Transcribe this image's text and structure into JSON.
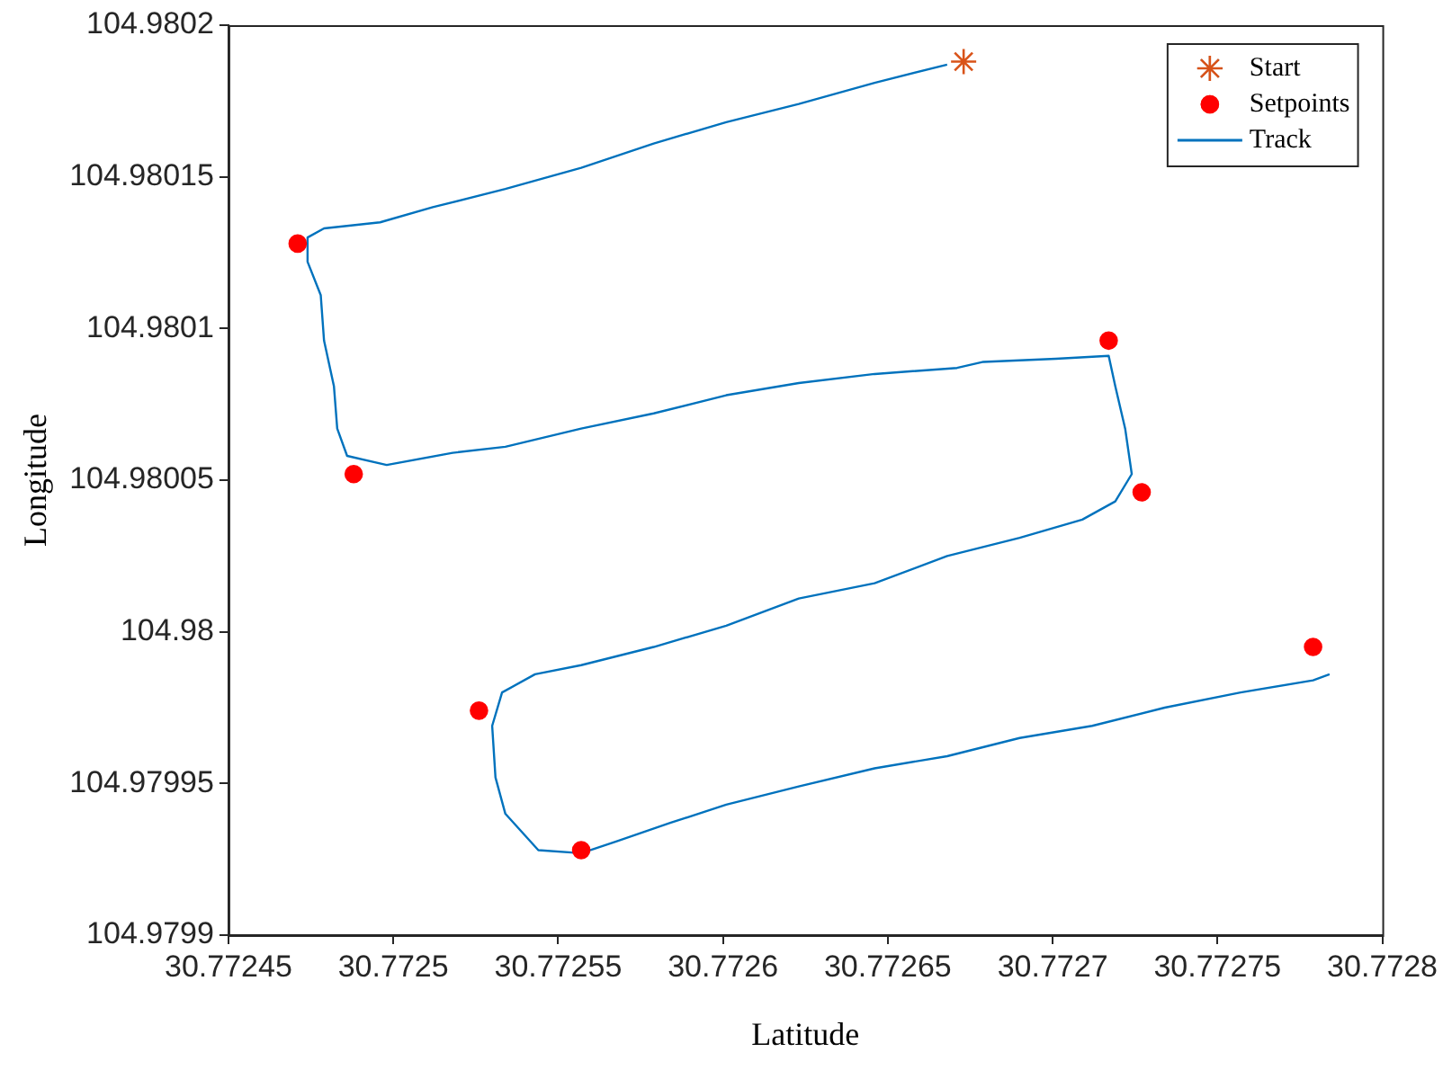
{
  "chart_data": {
    "type": "scatter",
    "xlabel": "Latitude",
    "ylabel": "Longitude",
    "xlim": [
      30.77245,
      30.7728
    ],
    "xticks": [
      30.77245,
      30.7725,
      30.77255,
      30.7726,
      30.77265,
      30.7727,
      30.77275,
      30.7728
    ],
    "ylim": [
      104.9799,
      104.9802
    ],
    "yticks": [
      104.9799,
      104.97995,
      104.98,
      104.98005,
      104.9801,
      104.98015,
      104.9802
    ],
    "grid": false,
    "legend": "top right",
    "series": [
      {
        "name": "Start",
        "marker": "cross",
        "color": "#d95319",
        "x": [
          30.772673
        ],
        "values": [
          104.980188
        ]
      },
      {
        "name": "Setpoints",
        "marker": "circle",
        "color": "#ff0000",
        "x": [
          30.772471,
          30.772488,
          30.772717,
          30.772727,
          30.772779,
          30.772526,
          30.772557
        ],
        "values": [
          104.980128,
          104.980052,
          104.980096,
          104.980046,
          104.979995,
          104.979974,
          104.979928
        ]
      },
      {
        "name": "Track",
        "type": "line",
        "marker": "none",
        "line_style": "solid",
        "color": "#0072bd",
        "x": [
          30.772668,
          30.772646,
          30.772623,
          30.772601,
          30.772579,
          30.772557,
          30.772534,
          30.772512,
          30.772496,
          30.772479,
          30.772474,
          30.772474,
          30.772478,
          30.772479,
          30.772482,
          30.772483,
          30.772486,
          30.772498,
          30.772518,
          30.772534,
          30.772557,
          30.772579,
          30.772601,
          30.772623,
          30.772646,
          30.772671,
          30.772679,
          30.772701,
          30.772717,
          30.772719,
          30.772722,
          30.772724,
          30.772719,
          30.772709,
          30.77269,
          30.772668,
          30.772646,
          30.772623,
          30.772601,
          30.772579,
          30.772557,
          30.772543,
          30.772533,
          30.77253,
          30.772531,
          30.772534,
          30.772544,
          30.772557,
          30.772568,
          30.772584,
          30.772601,
          30.772623,
          30.772646,
          30.772668,
          30.77269,
          30.772712,
          30.772734,
          30.772757,
          30.772779,
          30.772784
        ],
        "values": [
          104.980187,
          104.980181,
          104.980174,
          104.980168,
          104.980161,
          104.980153,
          104.980146,
          104.98014,
          104.980135,
          104.980133,
          104.98013,
          104.980122,
          104.980111,
          104.980096,
          104.980081,
          104.980067,
          104.980058,
          104.980055,
          104.980059,
          104.980061,
          104.980067,
          104.980072,
          104.980078,
          104.980082,
          104.980085,
          104.980087,
          104.980089,
          104.98009,
          104.980091,
          104.980081,
          104.980067,
          104.980052,
          104.980043,
          104.980037,
          104.980031,
          104.980025,
          104.980016,
          104.980011,
          104.980002,
          104.979995,
          104.979989,
          104.979986,
          104.97998,
          104.979969,
          104.979952,
          104.97994,
          104.979928,
          104.979927,
          104.979931,
          104.979937,
          104.979943,
          104.979949,
          104.979955,
          104.979959,
          104.979965,
          104.979969,
          104.979975,
          104.97998,
          104.979984,
          104.979986
        ]
      }
    ]
  }
}
